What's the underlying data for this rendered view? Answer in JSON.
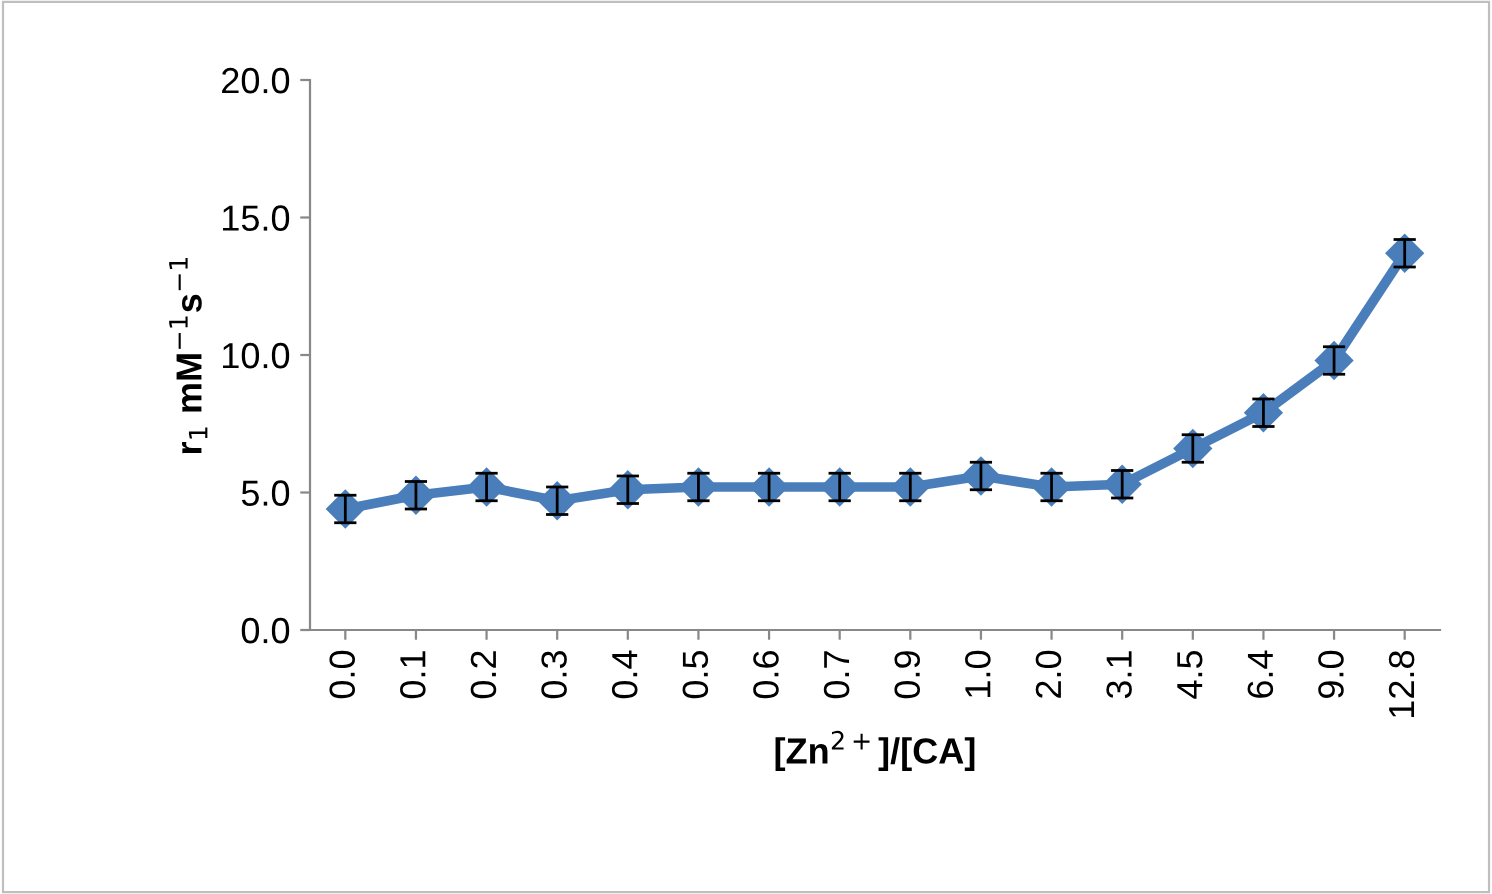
{
  "chart_data": {
    "type": "line",
    "xlabel": "[Zn$^{2+}$]/[CA]",
    "ylabel": "r$_{1}$ mM$^{−1}$s$^{−1}$",
    "categories": [
      "0.0",
      "0.1",
      "0.2",
      "0.3",
      "0.4",
      "0.5",
      "0.6",
      "0.7",
      "0.9",
      "1.0",
      "2.0",
      "3.1",
      "4.5",
      "6.4",
      "9.0",
      "12.8"
    ],
    "series": [
      {
        "color": "#4a7ebb",
        "values": [
          4.4,
          4.9,
          5.2,
          4.7,
          5.1,
          5.2,
          5.2,
          5.2,
          5.2,
          5.6,
          5.2,
          5.3,
          6.6,
          7.9,
          9.8,
          13.7
        ],
        "errors": [
          0.5,
          0.5,
          0.5,
          0.5,
          0.5,
          0.5,
          0.5,
          0.5,
          0.5,
          0.5,
          0.5,
          0.5,
          0.5,
          0.5,
          0.5,
          0.5
        ]
      }
    ],
    "ylim": [
      0,
      20
    ],
    "yticks": [
      {
        "value": 0,
        "label": "0.0"
      },
      {
        "value": 5,
        "label": "5.0"
      },
      {
        "value": 10,
        "label": "10.0"
      },
      {
        "value": 15,
        "label": "15.0"
      },
      {
        "value": 20,
        "label": "20.0"
      }
    ],
    "grid": false,
    "legend": false,
    "marker": "diamond",
    "line_style": "solid"
  }
}
